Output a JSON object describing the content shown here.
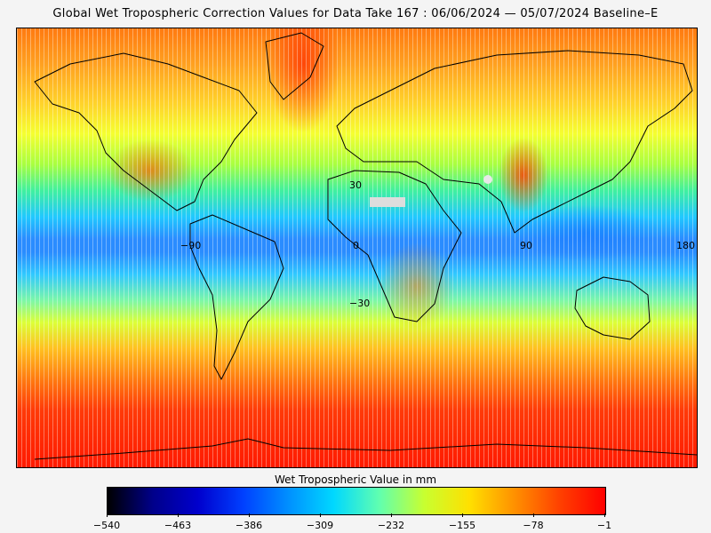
{
  "title": "Global Wet Tropospheric Correction Values for Data Take 167 : 06/06/2024 — 05/07/2024 Baseline–E",
  "map": {
    "lat_lon_labels": [
      "30",
      "−90",
      "0",
      "90",
      "180",
      "−30"
    ]
  },
  "colorbar": {
    "title": "Wet Tropospheric Value in mm",
    "unit": "mm",
    "range": [
      -540,
      -1
    ],
    "tick_labels": [
      "−540",
      "−463",
      "−386",
      "−309",
      "−232",
      "−155",
      "−78",
      "−1"
    ],
    "colors": [
      "#000000",
      "#00008a",
      "#0000cd",
      "#0040ff",
      "#0090ff",
      "#00d8ff",
      "#60ffb0",
      "#c8ff30",
      "#ffe000",
      "#ff9000",
      "#ff4000",
      "#ff0000"
    ]
  }
}
